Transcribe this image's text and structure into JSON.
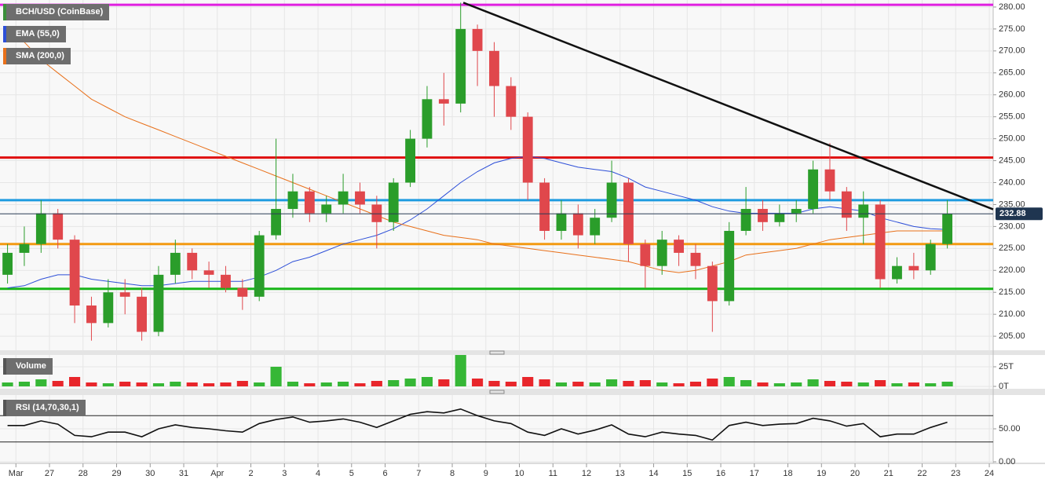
{
  "chart_data": [
    {
      "type": "candlestick",
      "title": "BCH/USD (CoinBase)",
      "x": [
        -0.25,
        0.25,
        0.75,
        1.25,
        1.75,
        2.25,
        2.75,
        3.25,
        3.75,
        4.25,
        4.75,
        5.25,
        5.75,
        6.25,
        6.75,
        7.25,
        7.75,
        8.25,
        8.75,
        9.25,
        9.75,
        10.25,
        10.75,
        11.25,
        11.75,
        12.25,
        12.75,
        13.25,
        13.75,
        14.25,
        14.75,
        15.25,
        15.75,
        16.25,
        16.75,
        17.25,
        17.75,
        18.25,
        18.75,
        19.25,
        19.75,
        20.25,
        20.75,
        21.25,
        21.75,
        22.25,
        22.75,
        23.25,
        23.75,
        24.25,
        24.75,
        25.25,
        25.75,
        26.25,
        26.75,
        27.25,
        27.75
      ],
      "open": [
        219,
        224,
        226,
        233,
        227,
        212,
        208,
        215,
        214,
        206,
        219,
        224,
        220,
        219,
        216,
        214,
        228,
        234,
        238,
        233,
        235,
        238,
        235,
        231,
        240,
        250,
        259,
        258,
        275,
        270,
        262,
        255,
        240,
        229,
        233,
        228,
        232,
        240,
        226,
        221,
        227,
        224,
        221,
        213,
        229,
        234,
        231,
        233,
        234,
        243,
        238,
        232,
        235,
        218,
        221,
        220,
        226
      ],
      "high": [
        226,
        230,
        236,
        234,
        228,
        214,
        218,
        218,
        216,
        221,
        227,
        225,
        222,
        221,
        218,
        229,
        250,
        242,
        239,
        237,
        242,
        240,
        237,
        241,
        252,
        262,
        265,
        281,
        276,
        272,
        264,
        256,
        241,
        236,
        235,
        234,
        245,
        241,
        227,
        229,
        228,
        226,
        222,
        231,
        239,
        236,
        235,
        236,
        245,
        249,
        239,
        238,
        236,
        223,
        224,
        227,
        236
      ],
      "low": [
        217,
        221,
        224,
        225,
        208,
        204,
        207,
        210,
        204,
        205,
        217,
        218,
        216,
        215,
        211,
        213,
        227,
        232,
        231,
        231,
        233,
        233,
        225,
        229,
        239,
        248,
        253,
        256,
        262,
        255,
        252,
        236,
        227,
        227,
        225,
        226,
        231,
        222,
        216,
        219,
        221,
        218,
        206,
        212,
        228,
        229,
        230,
        231,
        233,
        236,
        229,
        226,
        216,
        217,
        218,
        219,
        225
      ],
      "close": [
        224,
        226,
        233,
        227,
        212,
        208,
        215,
        214,
        206,
        219,
        224,
        220,
        219,
        216,
        214,
        228,
        234,
        238,
        233,
        235,
        238,
        235,
        231,
        240,
        250,
        259,
        258,
        275,
        270,
        262,
        255,
        240,
        229,
        233,
        228,
        232,
        240,
        226,
        221,
        227,
        224,
        221,
        213,
        229,
        234,
        231,
        233,
        234,
        243,
        238,
        232,
        235,
        218,
        221,
        220,
        226,
        232.88
      ],
      "up_color": "#2a9d2a",
      "down_color": "#e0474c",
      "series": [
        {
          "name": "EMA (55,0)",
          "color": "#2d4fd8",
          "values": [
            216,
            216.5,
            218,
            219,
            219,
            218,
            217.5,
            217,
            216.5,
            216.5,
            217,
            217.5,
            217.5,
            217.5,
            217.5,
            218.5,
            220,
            222,
            223,
            224.5,
            226,
            227,
            228,
            229.5,
            231.5,
            234,
            237,
            240,
            242.5,
            244.5,
            245.5,
            246,
            245.5,
            244.5,
            243.5,
            243,
            242.5,
            241,
            239,
            238,
            237,
            236,
            234.5,
            233.5,
            233,
            233,
            233,
            233,
            234,
            234.5,
            234,
            233.5,
            232,
            231,
            230,
            229.5,
            229.3
          ]
        },
        {
          "name": "SMA (200,0)",
          "color": "#e8701a",
          "values": [
            275,
            272,
            268,
            265,
            262,
            259,
            257,
            255,
            253.5,
            252,
            250.5,
            249,
            247.5,
            246,
            244.5,
            243,
            241.5,
            240,
            238.5,
            237,
            235.5,
            234,
            232.5,
            231,
            230,
            229,
            228,
            227.5,
            227,
            226,
            225.5,
            225,
            224.5,
            224,
            223.5,
            223,
            222.5,
            222,
            221,
            220,
            219.5,
            220,
            221,
            222,
            223.5,
            224,
            224.5,
            225,
            226,
            227,
            227.5,
            228,
            228.5,
            229,
            229,
            229,
            229
          ]
        }
      ],
      "levels": [
        {
          "value": 280.5,
          "color": "#e020e0"
        },
        {
          "value": 245.7,
          "color": "#e01010"
        },
        {
          "value": 236,
          "color": "#1e9be0"
        },
        {
          "value": 226,
          "color": "#f39a12"
        },
        {
          "value": 215.8,
          "color": "#19b519"
        }
      ],
      "trendline": {
        "x": [
          13.33,
          29.116
        ],
        "y": [
          281,
          233.9
        ],
        "color": "#111"
      },
      "current_price": 232.88,
      "xlim": [
        -0.474,
        29.116
      ],
      "ylim": [
        201.8,
        281.6
      ],
      "xticks": [
        {
          "value": 0,
          "label": "Mar"
        },
        {
          "value": 1,
          "label": "27"
        },
        {
          "value": 2,
          "label": "28"
        },
        {
          "value": 3,
          "label": "29"
        },
        {
          "value": 4,
          "label": "30"
        },
        {
          "value": 5,
          "label": "31"
        },
        {
          "value": 6,
          "label": "Apr"
        },
        {
          "value": 7,
          "label": "2"
        },
        {
          "value": 8,
          "label": "3"
        },
        {
          "value": 9,
          "label": "4"
        },
        {
          "value": 10,
          "label": "5"
        },
        {
          "value": 11,
          "label": "6"
        },
        {
          "value": 12,
          "label": "7"
        },
        {
          "value": 13,
          "label": "8"
        },
        {
          "value": 14,
          "label": "9"
        },
        {
          "value": 15,
          "label": "10"
        },
        {
          "value": 16,
          "label": "11"
        },
        {
          "value": 17,
          "label": "12"
        },
        {
          "value": 18,
          "label": "13"
        },
        {
          "value": 19,
          "label": "14"
        },
        {
          "value": 20,
          "label": "15"
        },
        {
          "value": 21,
          "label": "16"
        },
        {
          "value": 22,
          "label": "17"
        },
        {
          "value": 23,
          "label": "18"
        },
        {
          "value": 24,
          "label": "19"
        },
        {
          "value": 25,
          "label": "20"
        },
        {
          "value": 26,
          "label": "21"
        },
        {
          "value": 27,
          "label": "22"
        },
        {
          "value": 28,
          "label": "23"
        },
        {
          "value": 29,
          "label": "24"
        }
      ],
      "yticks": [
        {
          "value": 205,
          "label": "205.00"
        },
        {
          "value": 210,
          "label": "210.00"
        },
        {
          "value": 215,
          "label": "215.00"
        },
        {
          "value": 220,
          "label": "220.00"
        },
        {
          "value": 225,
          "label": "225.00"
        },
        {
          "value": 230,
          "label": "230.00"
        },
        {
          "value": 235,
          "label": "235.00"
        },
        {
          "value": 240,
          "label": "240.00"
        },
        {
          "value": 245,
          "label": "245.00"
        },
        {
          "value": 250,
          "label": "250.00"
        },
        {
          "value": 255,
          "label": "255.00"
        },
        {
          "value": 260,
          "label": "260.00"
        },
        {
          "value": 265,
          "label": "265.00"
        },
        {
          "value": 270,
          "label": "270.00"
        },
        {
          "value": 275,
          "label": "275.00"
        },
        {
          "value": 280,
          "label": "280.00"
        }
      ],
      "grid": true
    },
    {
      "type": "bar",
      "title": "Volume",
      "values": [
        5,
        6,
        9,
        7,
        12,
        5,
        4,
        6,
        5,
        4,
        6,
        5,
        4,
        5,
        7,
        5,
        25,
        6,
        4,
        5,
        6,
        4,
        7,
        8,
        10,
        12,
        9,
        40,
        10,
        7,
        6,
        12,
        9,
        5,
        6,
        5,
        9,
        7,
        8,
        5,
        4,
        6,
        10,
        12,
        8,
        5,
        4,
        5,
        9,
        7,
        6,
        5,
        8,
        4,
        5,
        4,
        6
      ],
      "up_color": "#36b736",
      "down_color": "#e8262b",
      "ylim": [
        0,
        40
      ],
      "yticks": [
        {
          "value": 0,
          "label": "0T"
        },
        {
          "value": 25,
          "label": "25T"
        }
      ]
    },
    {
      "type": "line",
      "title": "RSI (14,70,30,1)",
      "color": "#111",
      "values": [
        55,
        55,
        62,
        57,
        40,
        38,
        45,
        45,
        38,
        50,
        56,
        52,
        50,
        47,
        45,
        58,
        64,
        68,
        60,
        62,
        65,
        60,
        52,
        62,
        72,
        76,
        74,
        80,
        70,
        62,
        58,
        45,
        40,
        50,
        42,
        48,
        56,
        42,
        38,
        45,
        42,
        40,
        33,
        55,
        60,
        55,
        57,
        58,
        66,
        62,
        54,
        58,
        38,
        42,
        42,
        52,
        60
      ],
      "levels": [
        70,
        30
      ],
      "ylim": [
        0,
        100
      ],
      "yticks": [
        {
          "value": 0,
          "label": "0.00"
        },
        {
          "value": 50,
          "label": "50.00"
        }
      ]
    }
  ]
}
